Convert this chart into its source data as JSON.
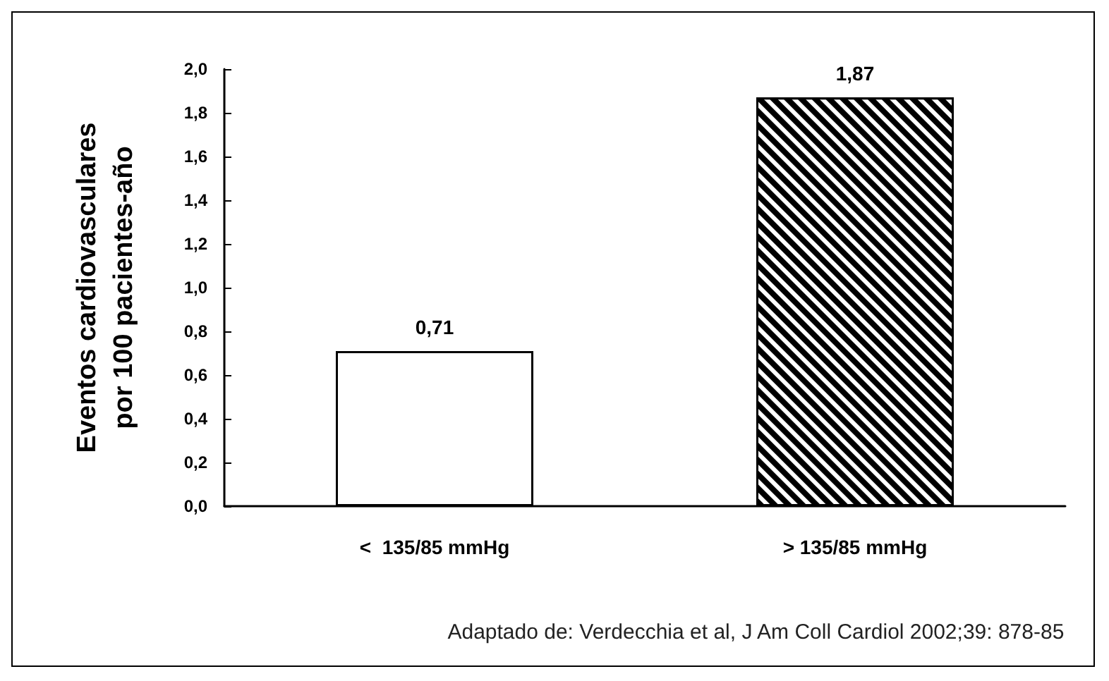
{
  "chart_data": {
    "type": "bar",
    "ylabel": "Eventos cardiovasculares\npor 100 pacientes-año",
    "categories": [
      "<  135/85 mmHg",
      "> 135/85 mmHg"
    ],
    "values": [
      0.71,
      1.87
    ],
    "colors": [
      "#ffffff",
      "#000000"
    ],
    "value_labels": [
      "0,71",
      "1,87"
    ],
    "ylim": [
      0,
      2
    ],
    "yticks": [
      {
        "value": 0,
        "label": "0,0"
      },
      {
        "value": 0.2,
        "label": "0,2"
      },
      {
        "value": 0.4,
        "label": "0,4"
      },
      {
        "value": 0.6,
        "label": "0,6"
      },
      {
        "value": 0.8,
        "label": "0,8"
      },
      {
        "value": 1,
        "label": "1,0"
      },
      {
        "value": 1.2,
        "label": "1,2"
      },
      {
        "value": 1.4,
        "label": "1,4"
      },
      {
        "value": 1.6,
        "label": "1,6"
      },
      {
        "value": 1.8,
        "label": "1,8"
      },
      {
        "value": 2,
        "label": "2,0"
      }
    ],
    "grid": false,
    "annotations": [
      "Adaptado de: Verdecchia et al, J Am Coll Cardiol 2002;39: 878-85"
    ]
  }
}
